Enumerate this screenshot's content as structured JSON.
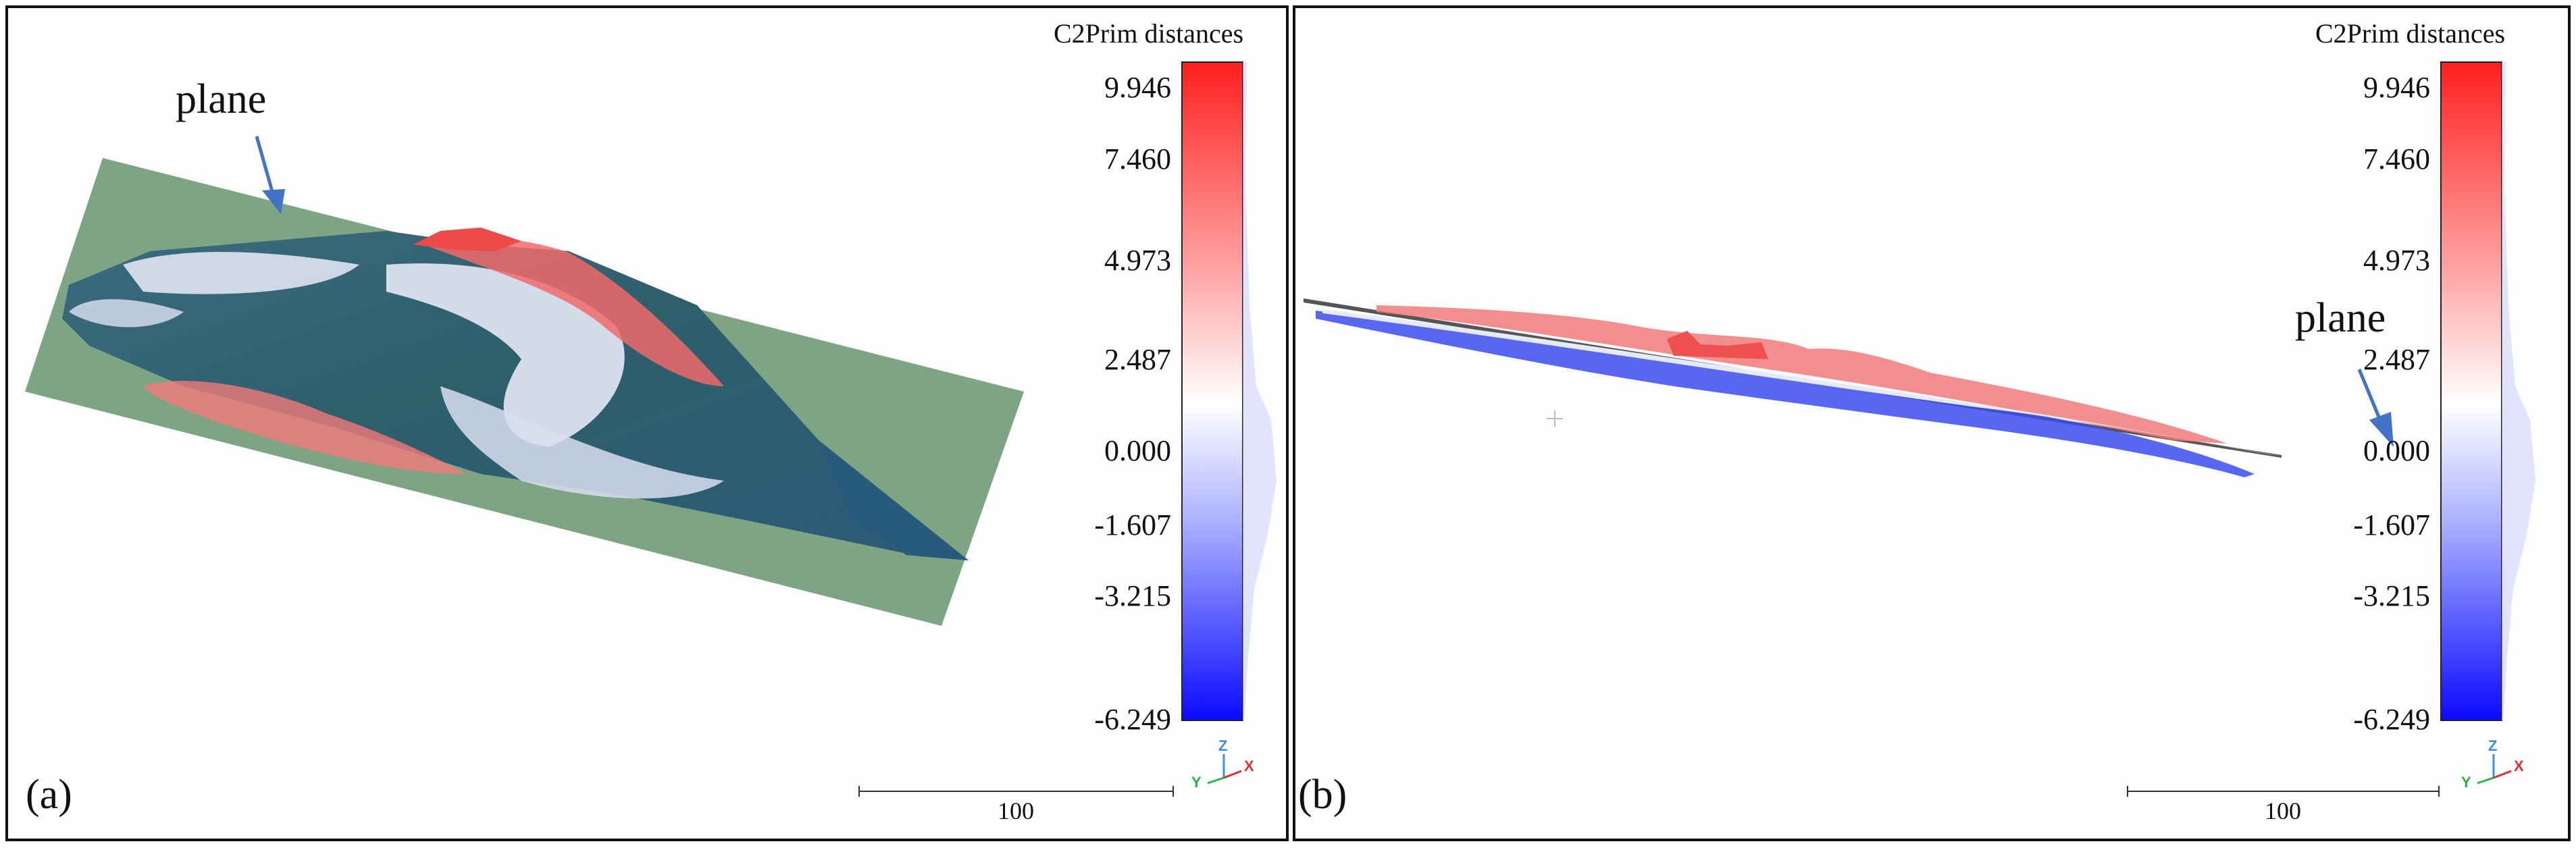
{
  "panels": [
    {
      "label": "(a)",
      "annotation": "plane",
      "colorbar": {
        "title": "C2Prim distances",
        "ticks": [
          "9.946",
          "7.460",
          "4.973",
          "2.487",
          "0.000",
          "-1.607",
          "-3.215",
          "-6.249"
        ]
      },
      "scale_bar": "100",
      "axes": {
        "x": "X",
        "y": "Y",
        "z": "Z"
      }
    },
    {
      "label": "(b)",
      "annotation": "plane",
      "colorbar": {
        "title": "C2Prim distances",
        "ticks": [
          "9.946",
          "7.460",
          "4.973",
          "2.487",
          "0.000",
          "-1.607",
          "-3.215",
          "-6.249"
        ]
      },
      "scale_bar": "100",
      "axes": {
        "x": "X",
        "y": "Y",
        "z": "Z"
      }
    }
  ],
  "colors": {
    "positive": "#ff2020",
    "zero": "#ffffff",
    "negative": "#1010ff",
    "plane": "#6f9a76",
    "surface_dark": "#2f5f70",
    "arrow": "#4472c4"
  }
}
